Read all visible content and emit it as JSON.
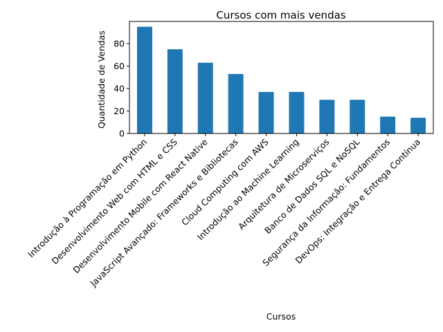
{
  "chart_data": {
    "type": "bar",
    "title": "Cursos com mais vendas",
    "xlabel": "Cursos",
    "ylabel": "Quantidade de Vendas",
    "categories": [
      "Introdução à Programação em Python",
      "Desenvolvimento Web com HTML e CSS",
      "Desenvolvimento Mobile com React Native",
      "JavaScript Avançado: Frameworks e Bibliotecas",
      "Cloud Computing com AWS",
      "Introdução ao Machine Learning",
      "Arquitetura de Microserviços",
      "Banco de Dados SQL e NoSQL",
      "Segurança da Informação: Fundamentos",
      "DevOps: Integração e Entrega Contínua"
    ],
    "values": [
      95,
      75,
      63,
      53,
      37,
      37,
      30,
      30,
      15,
      14
    ],
    "yticks": [
      0,
      20,
      40,
      60,
      80
    ],
    "ylim": [
      0,
      99.75
    ],
    "grid": false,
    "bar_color": "#1f77b4"
  }
}
